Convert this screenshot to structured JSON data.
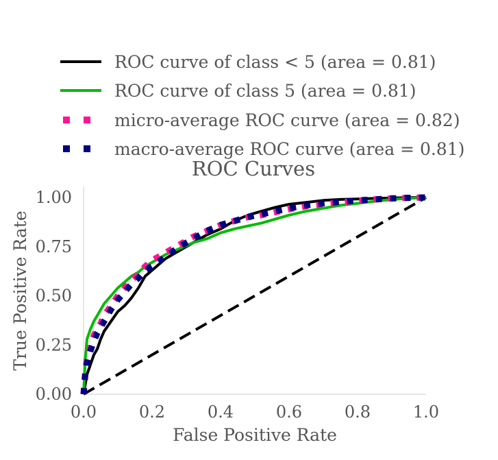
{
  "chart_data": {
    "type": "line",
    "title": "ROC Curves",
    "xlabel": "False Positive Rate",
    "ylabel": "True Positive Rate",
    "xlim": [
      0,
      1
    ],
    "ylim": [
      0,
      1
    ],
    "x_ticks": [
      "0.0",
      "0.2",
      "0.4",
      "0.6",
      "0.8",
      "1.0"
    ],
    "y_ticks": [
      "0.00",
      "0.25",
      "0.50",
      "0.75",
      "1.00"
    ],
    "grid": false,
    "legend_position": "top",
    "series": [
      {
        "name": "ROC curve of class < 5 (area = 0.81)",
        "color": "#000000",
        "style": "solid",
        "x": [
          0,
          0.005,
          0.01,
          0.02,
          0.03,
          0.04,
          0.05,
          0.06,
          0.08,
          0.1,
          0.12,
          0.14,
          0.16,
          0.18,
          0.2,
          0.24,
          0.28,
          0.32,
          0.36,
          0.4,
          0.44,
          0.48,
          0.52,
          0.56,
          0.6,
          0.65,
          0.7,
          0.75,
          0.8,
          0.85,
          0.9,
          0.95,
          1.0
        ],
        "y": [
          0,
          0.05,
          0.1,
          0.15,
          0.2,
          0.23,
          0.28,
          0.32,
          0.37,
          0.42,
          0.45,
          0.49,
          0.54,
          0.6,
          0.63,
          0.69,
          0.73,
          0.77,
          0.81,
          0.84,
          0.88,
          0.91,
          0.93,
          0.95,
          0.965,
          0.975,
          0.985,
          0.99,
          0.992,
          0.995,
          0.997,
          0.999,
          1.0
        ]
      },
      {
        "name": "ROC curve of class 5 (area = 0.81)",
        "color": "#00bb00",
        "style": "solid",
        "x": [
          0,
          0.005,
          0.01,
          0.02,
          0.03,
          0.04,
          0.05,
          0.06,
          0.08,
          0.1,
          0.12,
          0.14,
          0.16,
          0.18,
          0.2,
          0.24,
          0.28,
          0.32,
          0.36,
          0.4,
          0.44,
          0.48,
          0.52,
          0.56,
          0.6,
          0.65,
          0.7,
          0.75,
          0.8,
          0.85,
          0.9,
          0.95,
          1.0
        ],
        "y": [
          0,
          0.18,
          0.28,
          0.33,
          0.37,
          0.4,
          0.43,
          0.46,
          0.5,
          0.54,
          0.57,
          0.6,
          0.62,
          0.65,
          0.67,
          0.71,
          0.74,
          0.77,
          0.79,
          0.82,
          0.84,
          0.855,
          0.87,
          0.89,
          0.91,
          0.93,
          0.945,
          0.96,
          0.97,
          0.98,
          0.99,
          0.995,
          1.0
        ]
      },
      {
        "name": "micro-average ROC curve (area = 0.82)",
        "color": "#ff1493",
        "style": "dotted",
        "x": [
          0,
          0.005,
          0.01,
          0.02,
          0.03,
          0.04,
          0.05,
          0.06,
          0.08,
          0.1,
          0.12,
          0.14,
          0.16,
          0.18,
          0.2,
          0.24,
          0.28,
          0.32,
          0.36,
          0.4,
          0.44,
          0.48,
          0.52,
          0.56,
          0.6,
          0.65,
          0.7,
          0.75,
          0.8,
          0.85,
          0.9,
          0.95,
          1.0
        ],
        "y": [
          0,
          0.12,
          0.18,
          0.24,
          0.3,
          0.33,
          0.36,
          0.4,
          0.45,
          0.5,
          0.54,
          0.58,
          0.61,
          0.65,
          0.68,
          0.72,
          0.76,
          0.8,
          0.83,
          0.86,
          0.88,
          0.9,
          0.91,
          0.925,
          0.94,
          0.955,
          0.965,
          0.975,
          0.983,
          0.99,
          0.995,
          0.998,
          1.0
        ]
      },
      {
        "name": "macro-average ROC curve (area = 0.81)",
        "color": "#000080",
        "style": "dotted",
        "x": [
          0,
          0.005,
          0.01,
          0.02,
          0.03,
          0.04,
          0.05,
          0.06,
          0.08,
          0.1,
          0.12,
          0.14,
          0.16,
          0.18,
          0.2,
          0.24,
          0.28,
          0.32,
          0.36,
          0.4,
          0.44,
          0.48,
          0.52,
          0.56,
          0.6,
          0.65,
          0.7,
          0.75,
          0.8,
          0.85,
          0.9,
          0.95,
          1.0
        ],
        "y": [
          0,
          0.1,
          0.16,
          0.22,
          0.27,
          0.31,
          0.34,
          0.37,
          0.43,
          0.48,
          0.52,
          0.56,
          0.59,
          0.63,
          0.65,
          0.7,
          0.75,
          0.79,
          0.83,
          0.86,
          0.88,
          0.9,
          0.915,
          0.93,
          0.945,
          0.96,
          0.97,
          0.978,
          0.985,
          0.99,
          0.995,
          0.998,
          1.0
        ]
      },
      {
        "name": "",
        "color": "#000000",
        "style": "dashed",
        "x": [
          0,
          1
        ],
        "y": [
          0,
          1
        ]
      }
    ]
  }
}
